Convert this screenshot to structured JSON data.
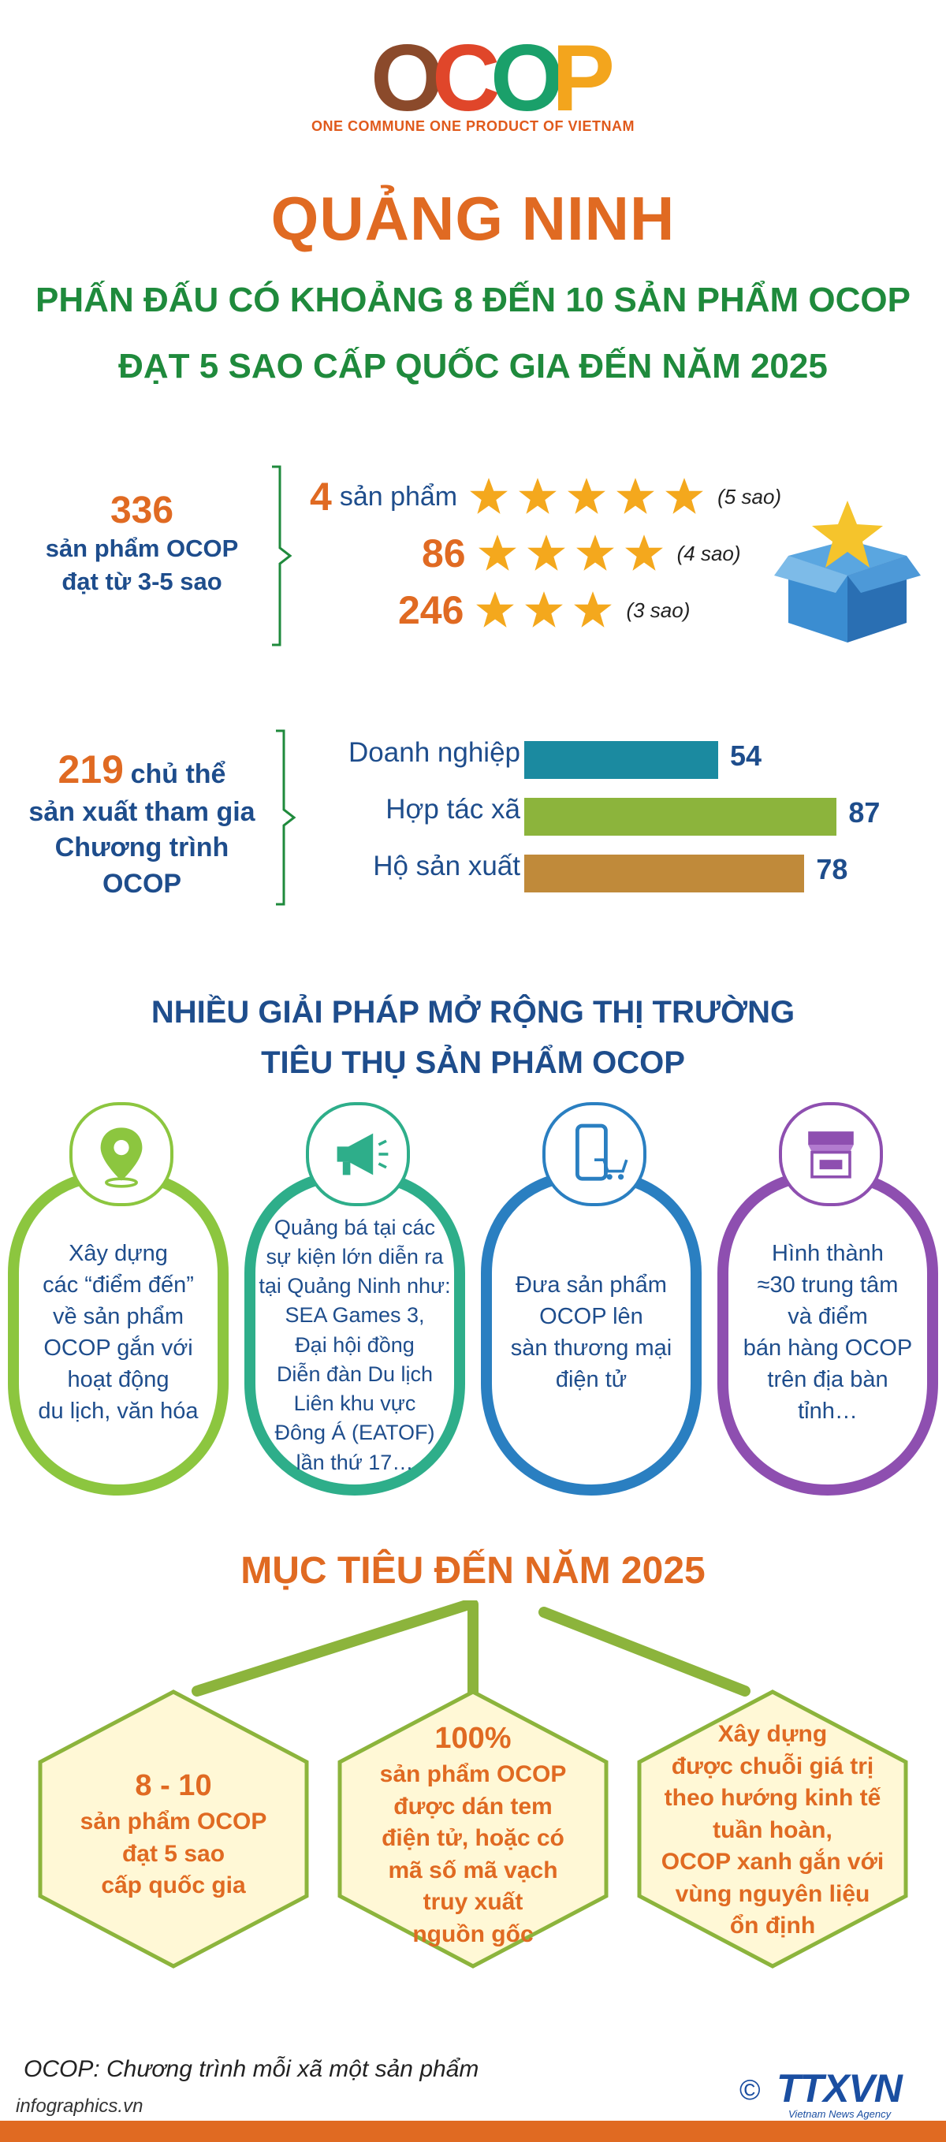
{
  "logo": {
    "letters": [
      "O",
      "C",
      "O",
      "P"
    ],
    "tagline": "ONE COMMUNE ONE PRODUCT OF VIETNAM",
    "colors": {
      "O1": "#8b4a2b",
      "C": "#e0462a",
      "O2": "#1aa06a",
      "P": "#f3a51d"
    }
  },
  "title": "QUẢNG NINH",
  "subtitle": [
    "PHẤN ĐẤU CÓ KHOẢNG 8 ĐẾN 10 SẢN PHẨM OCOP",
    "ĐẠT 5 SAO CẤP QUỐC GIA ĐẾN NĂM 2025"
  ],
  "products": {
    "total": "336",
    "total_desc": [
      "sản phẩm OCOP",
      "đạt từ 3-5 sao"
    ],
    "ratings": [
      {
        "count": "4",
        "unit": "sản phẩm",
        "stars": 5,
        "note": "(5 sao)"
      },
      {
        "count": "86",
        "unit": "",
        "stars": 4,
        "note": "(4 sao)"
      },
      {
        "count": "246",
        "unit": "",
        "stars": 3,
        "note": "(3 sao)"
      }
    ],
    "icon": "gift-box-star-icon"
  },
  "participants": {
    "total": "219",
    "total_desc": [
      "chủ thể",
      "sản xuất tham gia",
      "Chương trình",
      "OCOP"
    ]
  },
  "chart_data": {
    "type": "bar",
    "categories": [
      "Doanh nghiệp",
      "Hợp tác xã",
      "Hộ sản xuất"
    ],
    "values": [
      54,
      87,
      78
    ],
    "colors": [
      "#1b8aa0",
      "#8cb43c",
      "#c08a3a"
    ]
  },
  "solutions": {
    "heading": [
      "NHIỀU GIẢI PHÁP MỞ RỘNG THỊ TRƯỜNG",
      "TIÊU THỤ SẢN PHẨM OCOP"
    ],
    "items": [
      {
        "icon": "location-pin-icon",
        "color": "#8cc63f",
        "lines": [
          "Xây dựng",
          "các “điểm đến”",
          "về sản phẩm",
          "OCOP gắn với",
          "hoạt động",
          "du lịch, văn hóa"
        ]
      },
      {
        "icon": "megaphone-icon",
        "color": "#2eae8a",
        "lines": [
          "Quảng bá tại các",
          "sự kiện lớn diễn ra",
          "tại Quảng Ninh như:",
          "SEA Games 3,",
          "Đại hội đồng",
          "Diễn đàn Du lịch",
          "Liên khu vực",
          "Đông Á (EATOF)",
          "lần thứ 17…"
        ]
      },
      {
        "icon": "phone-cart-icon",
        "color": "#2a7fc1",
        "lines": [
          "Đưa sản phẩm",
          "OCOP lên",
          "sàn thương mại",
          "điện tử"
        ]
      },
      {
        "icon": "market-stall-icon",
        "color": "#8e4fb0",
        "lines": [
          "Hình thành",
          "≈30 trung tâm",
          "và điểm",
          "bán hàng OCOP",
          "trên địa bàn",
          "tỉnh…"
        ]
      }
    ]
  },
  "goals": {
    "heading": "MỤC TIÊU ĐẾN NĂM 2025",
    "items": [
      {
        "lead": "8 - 10",
        "lines": [
          "sản phẩm OCOP",
          "đạt 5 sao",
          "cấp quốc gia"
        ]
      },
      {
        "lead": "100%",
        "lines": [
          "sản phẩm OCOP",
          "được dán tem",
          "điện tử, hoặc có",
          "mã số mã vạch",
          "truy xuất",
          "nguồn gốc"
        ]
      },
      {
        "lead": "",
        "lines": [
          "Xây dựng",
          "được chuỗi giá trị",
          "theo hướng kinh tế",
          "tuần hoàn,",
          "OCOP xanh gắn với",
          "vùng nguyên liệu",
          "ổn định"
        ]
      }
    ],
    "colors": {
      "hex_fill": "#fff8d6",
      "hex_stroke": "#8cb43c"
    }
  },
  "footer": {
    "footnote": "OCOP: Chương trình mỗi xã một sản phẩm",
    "site": "infographics.vn",
    "copyright": "©",
    "brand": "TTXVN",
    "brand_sub": "Vietnam News Agency"
  }
}
